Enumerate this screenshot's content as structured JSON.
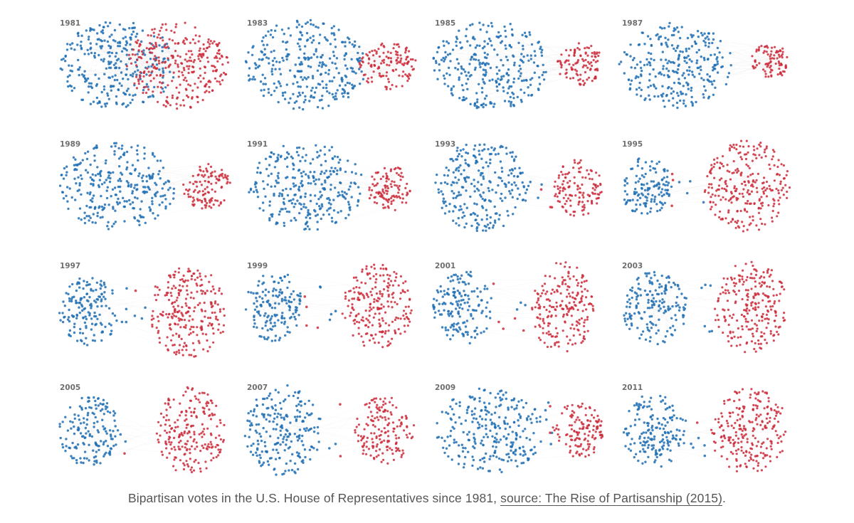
{
  "chart_data": {
    "type": "network-small-multiples",
    "title": "",
    "description_note": "",
    "colors": {
      "democrat": "#1f6fb4",
      "republican": "#cc2a3a",
      "edge": "#9a9a9a",
      "label": "#6e6e6e"
    },
    "panels": [
      {
        "year": "1981"
      },
      {
        "year": "1983"
      },
      {
        "year": "1985"
      },
      {
        "year": "1987"
      },
      {
        "year": "1989"
      },
      {
        "year": "1991"
      },
      {
        "year": "1993"
      },
      {
        "year": "1995"
      },
      {
        "year": "1997"
      },
      {
        "year": "1999"
      },
      {
        "year": "2001"
      },
      {
        "year": "2003"
      },
      {
        "year": "2005"
      },
      {
        "year": "2007"
      },
      {
        "year": "2009"
      },
      {
        "year": "2011"
      }
    ]
  },
  "caption": {
    "text": "Bipartisan votes in the U.S. House of Representatives since 1981, ",
    "link_text": "source: The Rise of Partisanship (2015)",
    "end": "."
  }
}
